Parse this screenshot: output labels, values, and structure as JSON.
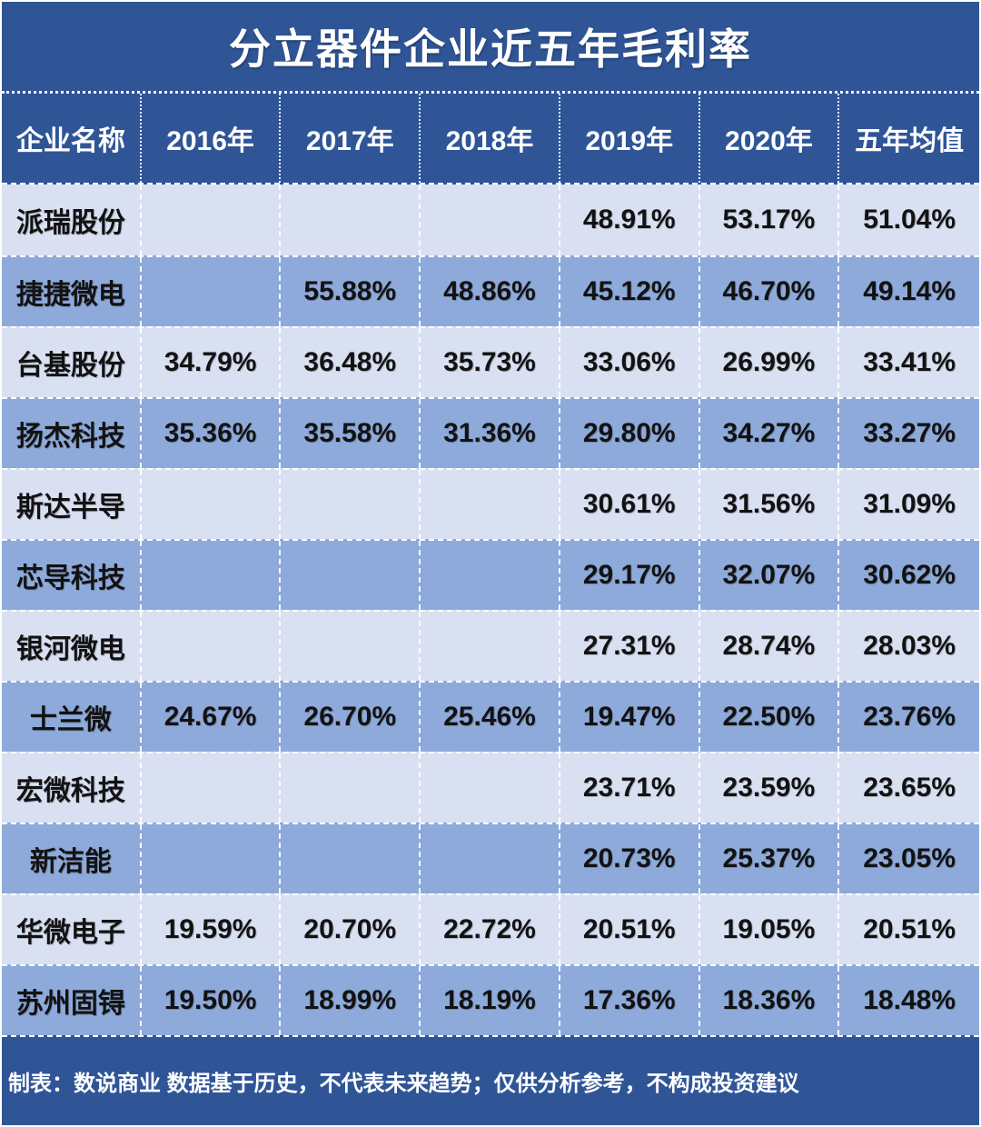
{
  "title": "分立器件企业近五年毛利率",
  "colors": {
    "background": "#2F5597",
    "row_light": "#D9E0F2",
    "row_medium": "#8EAADB",
    "header_text": "#FFFFFF",
    "cell_text": "#121212",
    "divider": "#FFFFFF"
  },
  "chart_data": {
    "type": "table",
    "title": "分立器件企业近五年毛利率",
    "columns": [
      "企业名称",
      "2016年",
      "2017年",
      "2018年",
      "2019年",
      "2020年",
      "五年均值"
    ],
    "rows": [
      {
        "name": "派瑞股份",
        "values": [
          "",
          "",
          "",
          "48.91%",
          "53.17%",
          "51.04%"
        ]
      },
      {
        "name": "捷捷微电",
        "values": [
          "",
          "55.88%",
          "48.86%",
          "45.12%",
          "46.70%",
          "49.14%"
        ]
      },
      {
        "name": "台基股份",
        "values": [
          "34.79%",
          "36.48%",
          "35.73%",
          "33.06%",
          "26.99%",
          "33.41%"
        ]
      },
      {
        "name": "扬杰科技",
        "values": [
          "35.36%",
          "35.58%",
          "31.36%",
          "29.80%",
          "34.27%",
          "33.27%"
        ]
      },
      {
        "name": "斯达半导",
        "values": [
          "",
          "",
          "",
          "30.61%",
          "31.56%",
          "31.09%"
        ]
      },
      {
        "name": "芯导科技",
        "values": [
          "",
          "",
          "",
          "29.17%",
          "32.07%",
          "30.62%"
        ]
      },
      {
        "name": "银河微电",
        "values": [
          "",
          "",
          "",
          "27.31%",
          "28.74%",
          "28.03%"
        ]
      },
      {
        "name": "士兰微",
        "values": [
          "24.67%",
          "26.70%",
          "25.46%",
          "19.47%",
          "22.50%",
          "23.76%"
        ]
      },
      {
        "name": "宏微科技",
        "values": [
          "",
          "",
          "",
          "23.71%",
          "23.59%",
          "23.65%"
        ]
      },
      {
        "name": "新洁能",
        "values": [
          "",
          "",
          "",
          "20.73%",
          "25.37%",
          "23.05%"
        ]
      },
      {
        "name": "华微电子",
        "values": [
          "19.59%",
          "20.70%",
          "22.72%",
          "20.51%",
          "19.05%",
          "20.51%"
        ]
      },
      {
        "name": "苏州固锝",
        "values": [
          "19.50%",
          "18.99%",
          "18.19%",
          "17.36%",
          "18.36%",
          "18.48%"
        ]
      }
    ]
  },
  "footer": {
    "note": "制表：数说商业 数据基于历史，不代表未来趋势；仅供分析参考，不构成投资建议"
  }
}
